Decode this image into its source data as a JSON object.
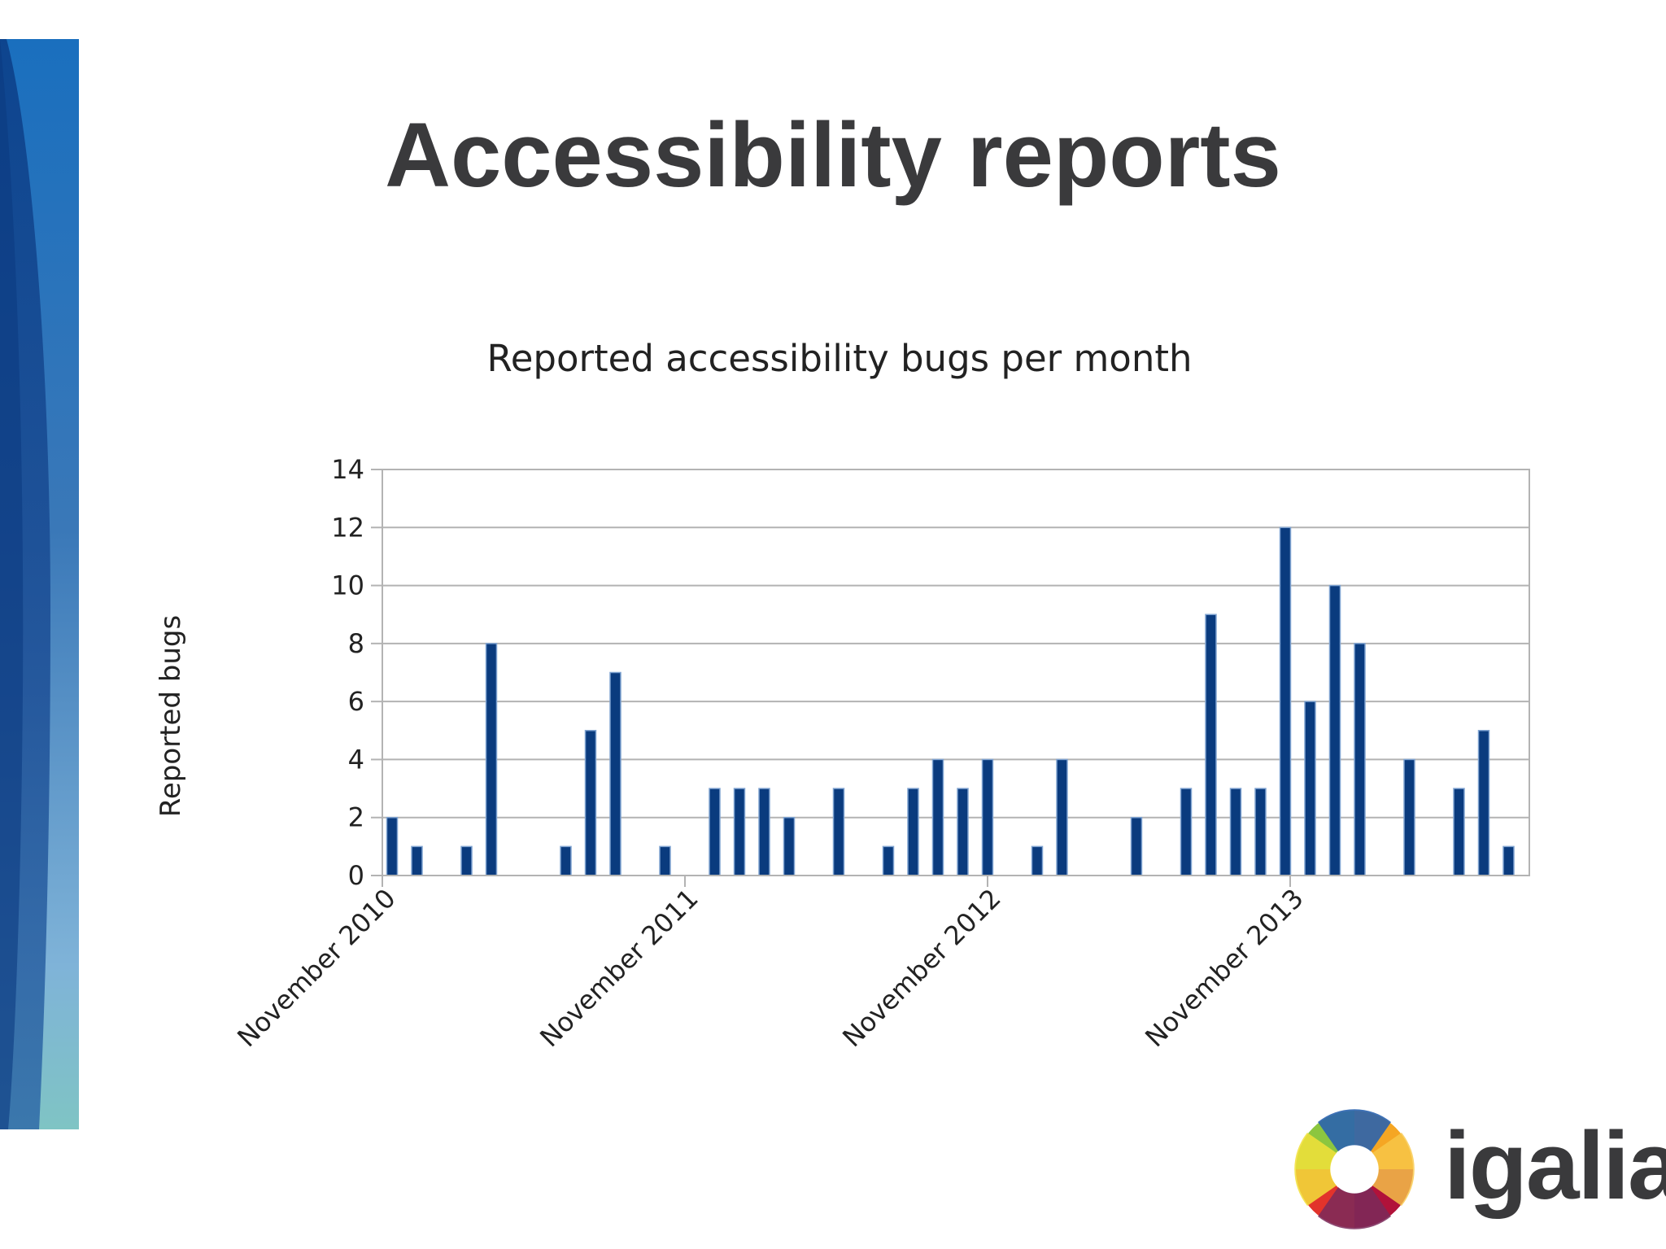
{
  "slide": {
    "title": "Accessibility reports"
  },
  "colors": {
    "bar": "#0a3b7e",
    "bar_edge": "#7fa3d1",
    "title_text": "#3a3a3c"
  },
  "chart_data": {
    "type": "bar",
    "title": "Reported accessibility bugs per month",
    "xlabel": "",
    "ylabel": "Reported bugs",
    "ylim": [
      0,
      14
    ],
    "yticks": [
      "0",
      "2",
      "4",
      "6",
      "8",
      "10",
      "12",
      "14"
    ],
    "xtick_labels": [
      "November 2010",
      "November 2011",
      "November 2012",
      "November 2013"
    ],
    "grid": true,
    "legend": "none",
    "categories": [
      "Nov 2010",
      "Dec 2010",
      "Jan 2011",
      "Feb 2011",
      "Mar 2011",
      "Apr 2011",
      "May 2011",
      "Jun 2011",
      "Jul 2011",
      "Aug 2011",
      "Sep 2011",
      "Oct 2011",
      "Nov 2011",
      "Dec 2011",
      "Jan 2012",
      "Feb 2012",
      "Mar 2012",
      "Apr 2012",
      "May 2012",
      "Jun 2012",
      "Jul 2012",
      "Aug 2012",
      "Sep 2012",
      "Oct 2012",
      "Nov 2012",
      "Dec 2012",
      "Jan 2013",
      "Feb 2013",
      "Mar 2013",
      "Apr 2013",
      "May 2013",
      "Jun 2013",
      "Jul 2013",
      "Aug 2013",
      "Sep 2013",
      "Oct 2013",
      "Nov 2013",
      "Dec 2013",
      "Jan 2014",
      "Feb 2014",
      "Mar 2014",
      "Apr 2014",
      "May 2014",
      "Jun 2014",
      "Jul 2014",
      "Aug 2014"
    ],
    "values": [
      2,
      1,
      0,
      1,
      8,
      0,
      0,
      1,
      5,
      7,
      0,
      1,
      0,
      3,
      3,
      3,
      2,
      0,
      3,
      0,
      1,
      3,
      4,
      3,
      4,
      0,
      1,
      4,
      0,
      0,
      2,
      0,
      3,
      9,
      3,
      3,
      12,
      6,
      10,
      8,
      0,
      4,
      0,
      3,
      5,
      1
    ]
  },
  "logo": {
    "text": "igalia"
  }
}
